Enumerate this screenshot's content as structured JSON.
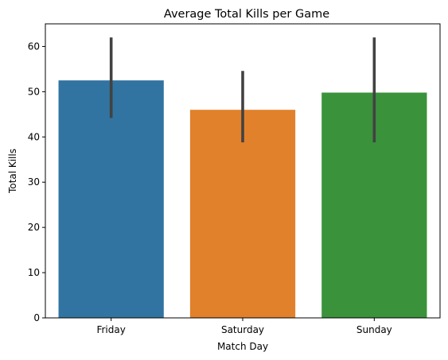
{
  "chart_data": {
    "type": "bar",
    "title": "Average Total Kills per Game",
    "xlabel": "Match Day",
    "ylabel": "Total Kills",
    "categories": [
      "Friday",
      "Saturday",
      "Sunday"
    ],
    "values": [
      52.5,
      46.0,
      49.8
    ],
    "error_bars": [
      {
        "low": 44.2,
        "high": 62.0
      },
      {
        "low": 38.8,
        "high": 54.6
      },
      {
        "low": 38.8,
        "high": 62.0
      }
    ],
    "colors": [
      "#3274a1",
      "#e1812c",
      "#3a923a"
    ],
    "error_bar_color": "#424242",
    "ylim": [
      0,
      65
    ],
    "yticks": [
      0,
      10,
      20,
      30,
      40,
      50,
      60
    ],
    "ytick_labels": [
      "0",
      "10",
      "20",
      "30",
      "40",
      "50",
      "60"
    ],
    "grid": false,
    "legend": "none"
  }
}
